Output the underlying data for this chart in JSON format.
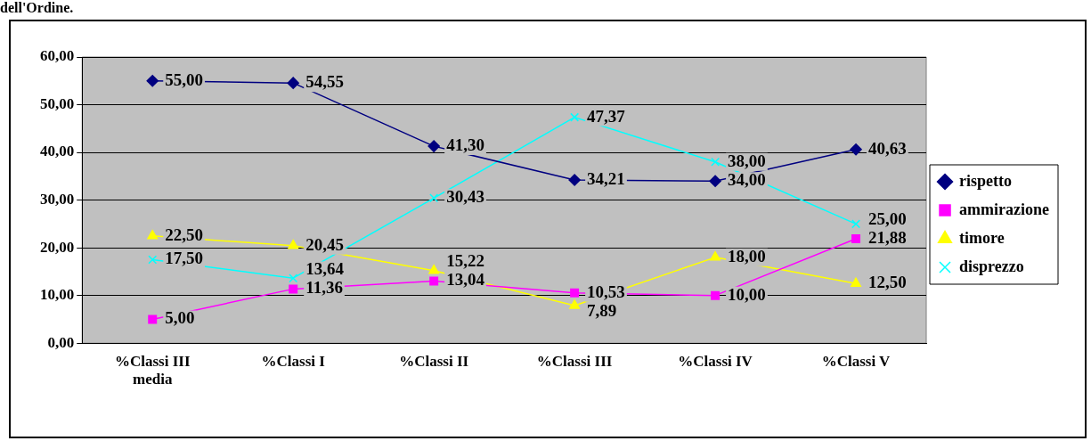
{
  "chart_data": {
    "type": "line",
    "title": "dell'Ordine.",
    "categories": [
      "%Classi III media",
      "%Classi I",
      "%Classi II",
      "%Classi III",
      "%Classi IV",
      "%Classi V"
    ],
    "series": [
      {
        "name": "rispetto",
        "color": "#000080",
        "marker": "diamond",
        "values": [
          55.0,
          54.55,
          41.3,
          34.21,
          34.0,
          40.63
        ],
        "value_labels": [
          "55,00",
          "54,55",
          "41,30",
          "34,21",
          "34,00",
          "40,63"
        ]
      },
      {
        "name": "ammirazione",
        "color": "#ff00ff",
        "marker": "square",
        "values": [
          5.0,
          11.36,
          13.04,
          10.53,
          10.0,
          21.88
        ],
        "value_labels": [
          "5,00",
          "11,36",
          "13,04",
          "10,53",
          "10,00",
          "21,88"
        ]
      },
      {
        "name": "timore",
        "color": "#ffff00",
        "marker": "triangle",
        "values": [
          22.5,
          20.45,
          15.22,
          7.89,
          18.0,
          12.5
        ],
        "value_labels": [
          "22,50",
          "20,45",
          "15,22",
          "7,89",
          "18,00",
          "12,50"
        ]
      },
      {
        "name": "disprezzo",
        "color": "#00ffff",
        "marker": "cross",
        "values": [
          17.5,
          13.64,
          30.43,
          47.37,
          38.0,
          25.0
        ],
        "value_labels": [
          "17,50",
          "13,64",
          "30,43",
          "47,37",
          "38,00",
          "25,00"
        ]
      }
    ],
    "ylim": [
      0,
      60
    ],
    "yticks": [
      {
        "value": 0,
        "label": "0,00"
      },
      {
        "value": 10,
        "label": "10,00"
      },
      {
        "value": 20,
        "label": "20,00"
      },
      {
        "value": 30,
        "label": "30,00"
      },
      {
        "value": 40,
        "label": "40,00"
      },
      {
        "value": 50,
        "label": "50,00"
      },
      {
        "value": 60,
        "label": "60,00"
      }
    ],
    "grid": "y",
    "legend": "right",
    "line_style": "solid"
  }
}
